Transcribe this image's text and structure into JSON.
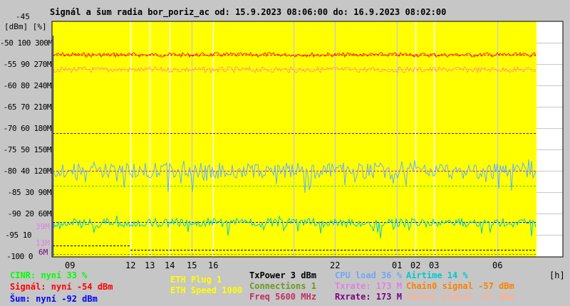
{
  "title": "Signál a šum radia bor_poriz_ac od: 15.9.2023 08:06:00 do: 16.9.2023 08:02:00",
  "axis": {
    "units": "[dBm] [%]",
    "top_label": "-45",
    "y_labels": [
      "-50 100 300M",
      "-55 90 270M",
      "-60 80 240M",
      "-65 70 210M",
      "-70 60 180M",
      "-75 50 150M",
      "-80 40 120M",
      "-85 30 90M",
      "-90 20 60M",
      "-95 10",
      "-100 0"
    ],
    "extra_labels": {
      "m39": "39M",
      "m13": "13M",
      "m6": "6M"
    },
    "x_ticks": [
      "09",
      "12",
      "13",
      "14",
      "15",
      "16",
      "22",
      "01",
      "02",
      "03",
      "06"
    ],
    "x_unit": "[h]"
  },
  "legend": {
    "cinr": "CINR: nyní 33 %",
    "signal": "Signál: nyní -54 dBm",
    "noise": "Šum: nyní -92 dBm",
    "eth_plug": "ETH Plug 1",
    "eth_speed": "ETH Speed 1000",
    "txpower": "TxPower 3 dBm",
    "connections": "Connections 1",
    "freq": "Freq 5600 MHz",
    "cpu": "CPU load 36 %",
    "txrate": "Txrate: 173 M",
    "rxrate": "Rxrate: 173 M",
    "airtime": "Airtime 14 %",
    "chain0": "Chain0 signal -57 dBm",
    "chain1": "Chain1 signal -57 dBm"
  },
  "colors": {
    "plot_bg": "#ffff00",
    "signal": "#ff0000",
    "chain1": "#ffa0a0",
    "noise": "#0000ff",
    "cinr": "#00ff00",
    "cpu": "#60b0ff",
    "airtime": "#00d0d0"
  }
}
